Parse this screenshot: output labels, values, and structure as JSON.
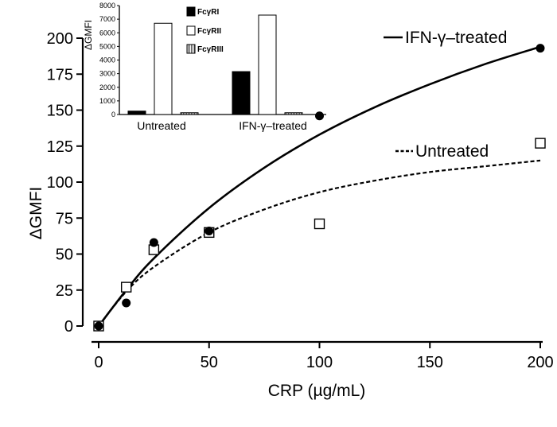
{
  "chart_data": [
    {
      "type": "scatter",
      "xlabel": "CRP (µg/mL)",
      "ylabel": "ΔGMFI",
      "xlim": [
        0,
        200
      ],
      "ylim": [
        0,
        200
      ],
      "xticks": [
        0,
        50,
        100,
        150,
        200
      ],
      "yticks": [
        0,
        25,
        50,
        75,
        100,
        125,
        150,
        175,
        200
      ],
      "grid": false,
      "legend_position": "top-right",
      "series": [
        {
          "name": "IFN-γ–treated",
          "marker": "filled-circle",
          "line_style": "solid",
          "x": [
            0,
            12.5,
            25,
            50,
            100,
            200
          ],
          "y": [
            0,
            16,
            58,
            66,
            146,
            193
          ]
        },
        {
          "name": "Untreated",
          "marker": "open-square",
          "line_style": "dashed",
          "x": [
            0,
            12.5,
            25,
            50,
            100,
            200
          ],
          "y": [
            0,
            27,
            53,
            65,
            71,
            127
          ]
        }
      ],
      "fit_curves": [
        {
          "series": "IFN-γ–treated",
          "x": [
            0,
            12.5,
            25,
            50,
            75,
            100,
            125,
            150,
            175,
            200
          ],
          "y": [
            0,
            25,
            47,
            82,
            110,
            133,
            152,
            168,
            182,
            194
          ]
        },
        {
          "series": "Untreated",
          "x": [
            0,
            12.5,
            25,
            50,
            75,
            100,
            125,
            150,
            175,
            200
          ],
          "y": [
            0,
            24,
            41,
            65,
            81,
            93,
            101,
            107,
            111,
            115
          ]
        }
      ]
    },
    {
      "type": "bar",
      "inset": true,
      "ylabel": "ΔGMFI",
      "ylim": [
        0,
        8000
      ],
      "yticks": [
        0,
        1000,
        2000,
        3000,
        4000,
        5000,
        6000,
        7000,
        8000
      ],
      "categories": [
        "Untreated",
        "IFN-γ–treated"
      ],
      "legend_position": "right",
      "series": [
        {
          "name": "FcγRI",
          "fill": "solid-black",
          "values": [
            250,
            3150
          ]
        },
        {
          "name": "FcγRII",
          "fill": "white",
          "values": [
            6700,
            7300
          ]
        },
        {
          "name": "FcγRIII",
          "fill": "hatched-gray",
          "values": [
            130,
            130
          ]
        }
      ]
    }
  ]
}
